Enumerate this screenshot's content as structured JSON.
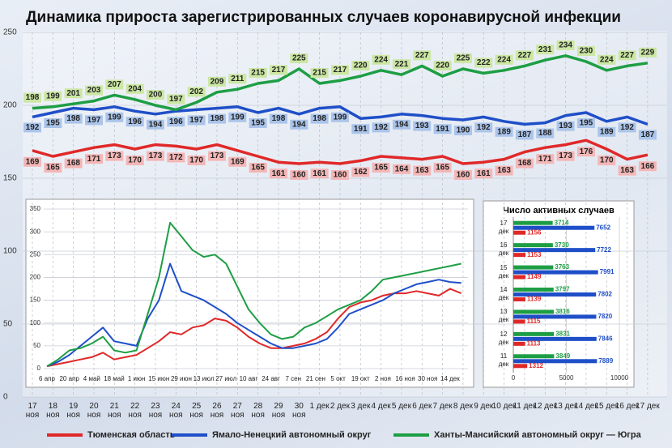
{
  "chart_data": [
    {
      "type": "line",
      "title": "Динамика прироста зарегистрированных случаев коронавирусной инфекции",
      "categories": [
        "17 ноя",
        "18 ноя",
        "19 ноя",
        "20 ноя",
        "21 ноя",
        "22 ноя",
        "23 ноя",
        "24 ноя",
        "25 ноя",
        "26 ноя",
        "27 ноя",
        "28 ноя",
        "29 ноя",
        "30 ноя",
        "1 дек",
        "2 дек",
        "3 дек",
        "4 дек",
        "5 дек",
        "6 дек",
        "7 дек",
        "8 дек",
        "9 дек",
        "10 дек",
        "11 дек",
        "12 дек",
        "13 дек",
        "14 дек",
        "15 дек",
        "16 дек",
        "17 дек"
      ],
      "series": [
        {
          "name": "Тюменская область",
          "color": "#e02828",
          "values": [
            169,
            165,
            168,
            171,
            173,
            170,
            173,
            172,
            170,
            173,
            169,
            165,
            161,
            160,
            161,
            160,
            162,
            165,
            164,
            163,
            165,
            160,
            161,
            163,
            168,
            171,
            173,
            176,
            170,
            163,
            166
          ]
        },
        {
          "name": "Ямало-Ненецкий автономный округ",
          "color": "#1f4fc8",
          "values": [
            192,
            195,
            198,
            197,
            199,
            196,
            194,
            196,
            197,
            198,
            199,
            195,
            198,
            194,
            198,
            199,
            191,
            192,
            194,
            193,
            191,
            190,
            192,
            189,
            187,
            188,
            193,
            195,
            189,
            192,
            187
          ]
        },
        {
          "name": "Ханты-Мансийский автономный округ — Югра",
          "color": "#1d9e44",
          "values": [
            198,
            199,
            201,
            203,
            207,
            204,
            200,
            197,
            202,
            209,
            211,
            215,
            217,
            225,
            215,
            217,
            220,
            224,
            221,
            227,
            220,
            225,
            222,
            224,
            227,
            231,
            234,
            230,
            224,
            227,
            229
          ]
        }
      ],
      "ylim": [
        0,
        250
      ],
      "yticks": [
        0,
        50,
        100,
        150,
        200,
        250
      ],
      "grid": true,
      "legend": "bottom"
    },
    {
      "type": "line",
      "categories": [
        "6 апр",
        null,
        "20 апр",
        null,
        "4 май",
        null,
        "18 май",
        null,
        "1 июн",
        null,
        "15 июн",
        null,
        "29 июн",
        null,
        "13 июл",
        null,
        "27 июл",
        null,
        "10 авг",
        null,
        "24 авг",
        null,
        "7 сен",
        null,
        "21 сен",
        null,
        "5 окт",
        null,
        "19 окт",
        null,
        "2 ноя",
        null,
        "16 ноя",
        null,
        "30 ноя",
        null,
        "14 дек",
        null
      ],
      "series": [
        {
          "color": "#e02828",
          "values": [
            5,
            10,
            15,
            20,
            25,
            35,
            20,
            25,
            30,
            45,
            60,
            80,
            75,
            90,
            95,
            110,
            105,
            90,
            70,
            55,
            45,
            45,
            50,
            55,
            65,
            80,
            110,
            135,
            145,
            150,
            160,
            165,
            165,
            170,
            165,
            160,
            175,
            165
          ]
        },
        {
          "color": "#1f4fc8",
          "values": [
            5,
            15,
            30,
            50,
            70,
            90,
            60,
            55,
            50,
            110,
            150,
            230,
            170,
            160,
            150,
            135,
            120,
            100,
            85,
            70,
            55,
            45,
            45,
            50,
            55,
            65,
            90,
            120,
            130,
            140,
            150,
            165,
            175,
            185,
            190,
            195,
            190,
            188
          ]
        },
        {
          "color": "#1d9e44",
          "values": [
            5,
            20,
            40,
            45,
            55,
            70,
            40,
            35,
            40,
            120,
            200,
            320,
            290,
            260,
            245,
            250,
            230,
            180,
            130,
            100,
            75,
            65,
            70,
            90,
            100,
            115,
            130,
            140,
            150,
            170,
            195,
            200,
            205,
            210,
            215,
            220,
            225,
            230
          ]
        }
      ],
      "ylim": [
        0,
        350
      ],
      "yticks": [
        0,
        50,
        100,
        150,
        200,
        250,
        300,
        350
      ],
      "grid": true
    },
    {
      "type": "bar",
      "orientation": "horizontal",
      "title": "Число активных случаев",
      "categories": [
        "17 дек",
        "16 дек",
        "15 дек",
        "14 дек",
        "13 дек",
        "12 дек",
        "11 дек"
      ],
      "series": [
        {
          "color": "#1d9e44",
          "values": [
            3714,
            3730,
            3763,
            3797,
            3816,
            3831,
            3849
          ]
        },
        {
          "color": "#1f4fc8",
          "values": [
            7652,
            7722,
            7991,
            7802,
            7820,
            7846,
            7889
          ]
        },
        {
          "color": "#e02828",
          "values": [
            1156,
            1153,
            1149,
            1139,
            1115,
            1113,
            1312
          ]
        }
      ],
      "xlim": [
        0,
        10000
      ],
      "xticks": [
        0,
        5000,
        10000
      ],
      "grid": true
    }
  ]
}
